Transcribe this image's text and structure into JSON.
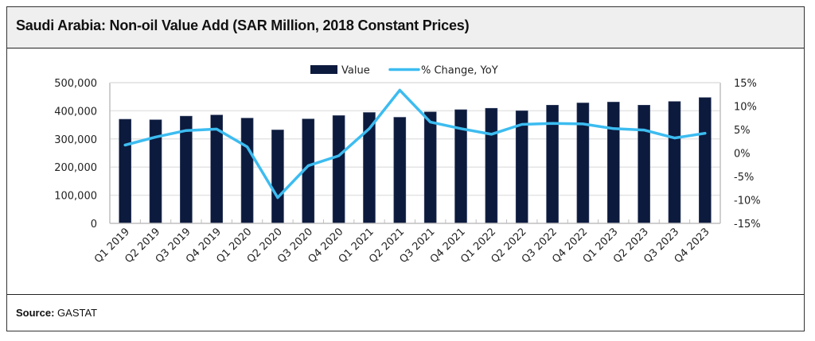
{
  "title": "Saudi Arabia: Non-oil Value Add (SAR Million, 2018 Constant Prices)",
  "footer": {
    "source_label": "Source:",
    "source_value": "GASTAT"
  },
  "colors": {
    "bar": "#0c1a3d",
    "line": "#3cbcf0",
    "grid": "#e4e4e4",
    "axis": "#bfbfbf"
  },
  "chart_data": {
    "type": "bar+line",
    "title": "Saudi Arabia: Non-oil Value Add (SAR Million, 2018 Constant Prices)",
    "categories": [
      "Q1 2019",
      "Q2 2019",
      "Q3 2019",
      "Q4 2019",
      "Q1 2020",
      "Q2 2020",
      "Q3 2020",
      "Q4 2020",
      "Q1 2021",
      "Q2 2021",
      "Q3 2021",
      "Q4 2021",
      "Q1 2022",
      "Q2 2022",
      "Q3 2022",
      "Q4 2022",
      "Q1 2023",
      "Q2 2023",
      "Q3 2023",
      "Q4 2023"
    ],
    "series": [
      {
        "name": "Value",
        "type": "bar",
        "axis": "left",
        "values": [
          370000,
          368000,
          381000,
          385000,
          374000,
          332000,
          371000,
          383000,
          394000,
          377000,
          396000,
          404000,
          409000,
          400000,
          420000,
          428000,
          431000,
          420000,
          433000,
          447000
        ]
      },
      {
        "name": "% Change, YoY",
        "type": "line",
        "axis": "right",
        "values": [
          1.7,
          3.4,
          4.8,
          5.1,
          1.3,
          -9.5,
          -2.7,
          -0.6,
          5.2,
          13.4,
          6.6,
          5.2,
          4.0,
          6.1,
          6.3,
          6.2,
          5.2,
          4.9,
          3.2,
          4.2
        ]
      }
    ],
    "y_left": {
      "range": [
        0,
        500000
      ],
      "ticks": [
        0,
        100000,
        200000,
        300000,
        400000,
        500000
      ],
      "tick_labels": [
        "0",
        "100,000",
        "200,000",
        "300,000",
        "400,000",
        "500,000"
      ]
    },
    "y_right": {
      "range": [
        -15,
        15
      ],
      "ticks": [
        -15,
        -10,
        -5,
        0,
        5,
        10,
        15
      ],
      "tick_labels": [
        "-15%",
        "-10%",
        "-5%",
        "0%",
        "5%",
        "10%",
        "15%"
      ]
    },
    "xlabel": "",
    "ylabel": "",
    "grid": true,
    "legend": {
      "position": "top-center",
      "entries": [
        "Value",
        "% Change, YoY"
      ]
    }
  }
}
